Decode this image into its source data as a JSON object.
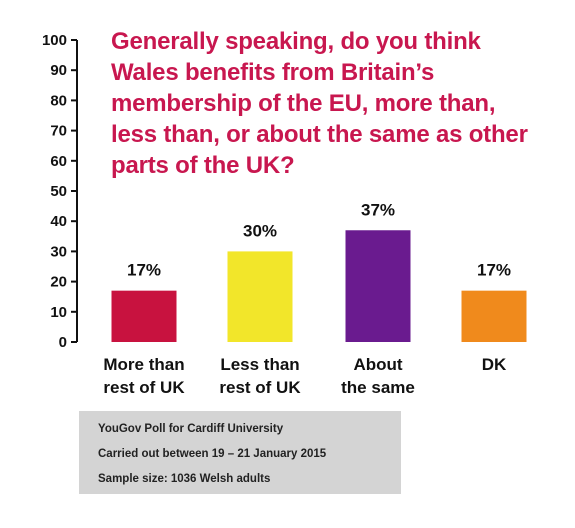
{
  "chart_data": {
    "type": "bar",
    "title_lines": [
      "Generally speaking, do you think",
      "Wales benefits from Britain’s",
      "membership of the EU, more than,",
      "less than, or about the same as other",
      "parts of the UK?"
    ],
    "categories": [
      [
        "More than",
        "rest of UK"
      ],
      [
        "Less than",
        "rest of UK"
      ],
      [
        "About",
        "the same"
      ],
      [
        "DK"
      ]
    ],
    "values": [
      17,
      30,
      37,
      17
    ],
    "value_labels": [
      "17%",
      "30%",
      "37%",
      "17%"
    ],
    "colors": [
      "#c8123f",
      "#f2e62a",
      "#6a1b8f",
      "#f08a1c"
    ],
    "ylim": [
      0,
      100
    ],
    "yticks": [
      0,
      10,
      20,
      30,
      40,
      50,
      60,
      70,
      80,
      90,
      100
    ],
    "grid": false
  },
  "source_box": {
    "lines": [
      "YouGov Poll for Cardiff University",
      "Carried out between 19 – 21 January 2015",
      "Sample size: 1036 Welsh adults"
    ]
  }
}
